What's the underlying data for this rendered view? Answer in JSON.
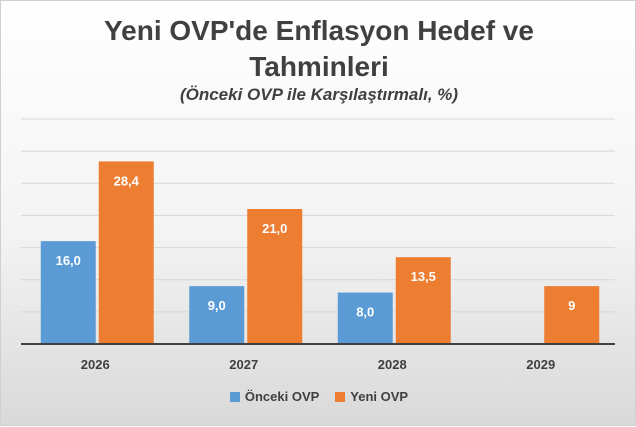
{
  "chart_data": {
    "type": "bar",
    "title_line1": "Yeni OVP'de Enflasyon Hedef ve",
    "title_line2": "Tahminleri",
    "subtitle": "(Önceki OVP ile Karşılaştırmalı, %)",
    "categories": [
      "2026",
      "2027",
      "2028",
      "2029"
    ],
    "series": [
      {
        "name": "Önceki OVP",
        "color": "#5b9bd5",
        "values": [
          16.0,
          9.0,
          8.0,
          null
        ],
        "labels": [
          "16,0",
          "9,0",
          "8,0",
          ""
        ]
      },
      {
        "name": "Yeni OVP",
        "color": "#ed7d31",
        "values": [
          28.4,
          21.0,
          13.5,
          9
        ],
        "labels": [
          "28,4",
          "21,0",
          "13,5",
          "9"
        ]
      }
    ],
    "ylim": [
      0,
      35
    ],
    "grid": true,
    "legend": "bottom"
  }
}
